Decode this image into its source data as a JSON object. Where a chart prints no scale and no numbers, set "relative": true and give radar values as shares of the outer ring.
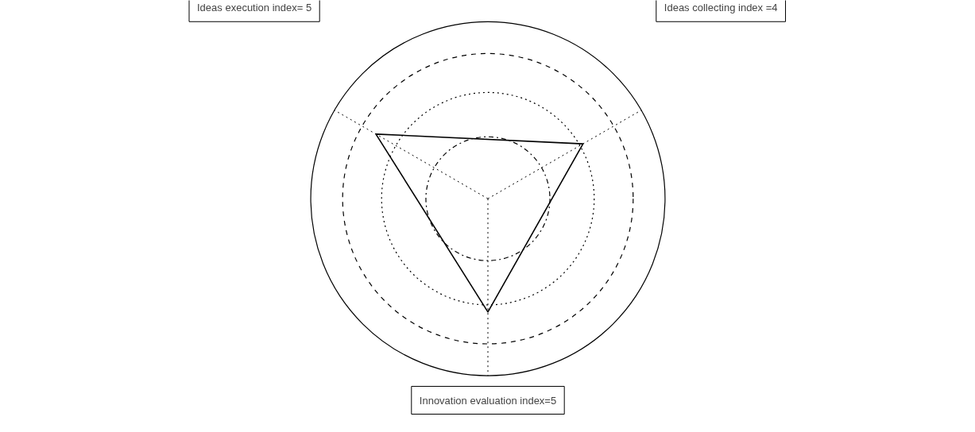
{
  "chart_data": {
    "type": "radar",
    "relative": true,
    "categories": [
      "Ideas collecting index =4",
      "Innovation evaluation index=5",
      "Ideas execution index= 5"
    ],
    "series": [
      {
        "color": "#000000",
        "values": [
          0.62,
          0.64,
          0.73
        ]
      }
    ]
  }
}
